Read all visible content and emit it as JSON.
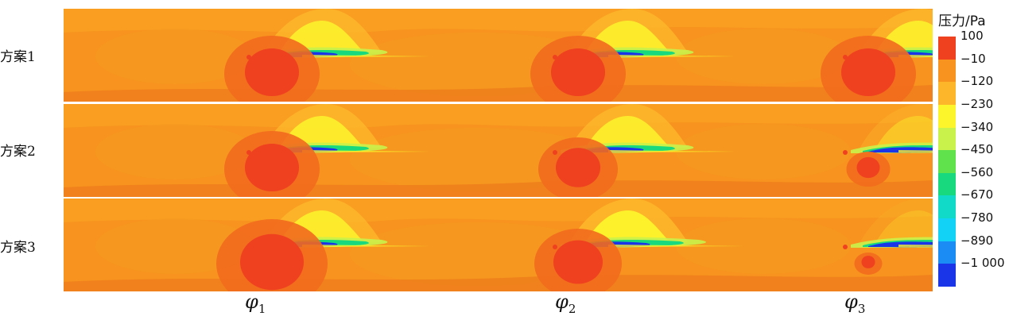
{
  "legend": {
    "title": "压力/Pa",
    "ticks": [
      "100",
      "−10",
      "−120",
      "−230",
      "−340",
      "−450",
      "−560",
      "−670",
      "−780",
      "−890",
      "−1 000"
    ],
    "colors": [
      "#ef4020",
      "#f7931e",
      "#fdb52a",
      "#fcf52b",
      "#c9f24a",
      "#5fe24b",
      "#18d97e",
      "#12dac8",
      "#12d2f6",
      "#1b8cf3",
      "#1a35e8"
    ]
  },
  "rows": [
    {
      "label": "方案1"
    },
    {
      "label": "方案2"
    },
    {
      "label": "方案3"
    }
  ],
  "columns": [
    {
      "symbol": "φ",
      "sub": "1"
    },
    {
      "symbol": "φ",
      "sub": "2"
    },
    {
      "symbol": "φ",
      "sub": "3"
    }
  ]
}
